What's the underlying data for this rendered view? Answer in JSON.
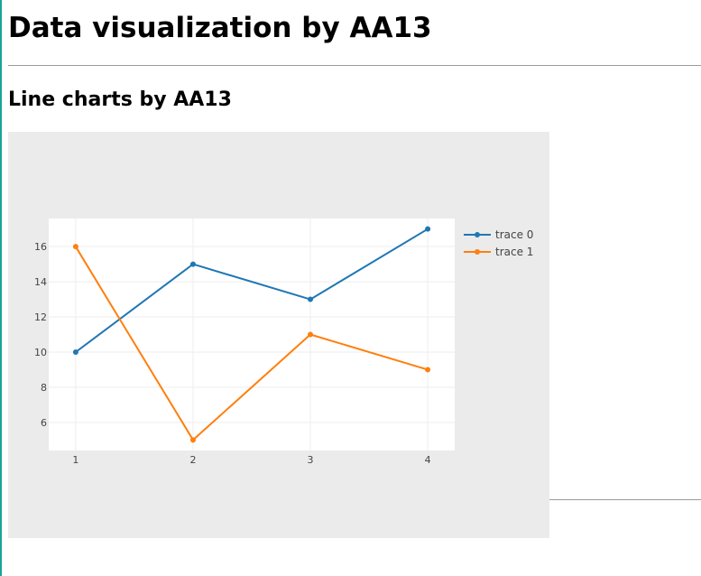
{
  "page": {
    "title": "Data visualization by AA13",
    "section_title": "Line charts by AA13"
  },
  "colors": {
    "paper_bg": "#ebebeb",
    "plot_bg": "#ffffff",
    "grid": "#eeeeee",
    "trace0": "#1f77b4",
    "trace1": "#ff7f0e",
    "accent_rule": "#1aa39a",
    "divider": "#9a9a9a"
  },
  "chart_data": {
    "type": "line",
    "title": "",
    "xlabel": "",
    "ylabel": "",
    "x": [
      1,
      2,
      3,
      4
    ],
    "xticks": [
      1,
      2,
      3,
      4
    ],
    "yticks": [
      6,
      8,
      10,
      12,
      14,
      16
    ],
    "xlim": [
      0.77,
      4.23
    ],
    "ylim": [
      4.4,
      17.6
    ],
    "grid": true,
    "legend_position": "top-right",
    "series": [
      {
        "name": "trace 0",
        "values": [
          10,
          15,
          13,
          17
        ],
        "color": "#1f77b4",
        "mode": "lines+markers"
      },
      {
        "name": "trace 1",
        "values": [
          16,
          5,
          11,
          9
        ],
        "color": "#ff7f0e",
        "mode": "lines+markers"
      }
    ]
  }
}
